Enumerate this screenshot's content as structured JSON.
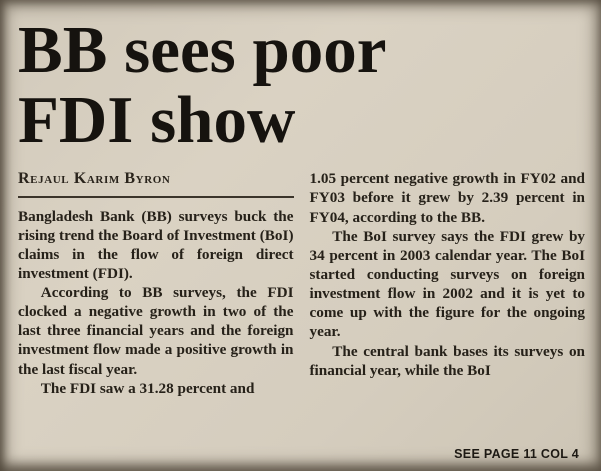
{
  "article": {
    "headline": {
      "line1": "BB sees poor",
      "line2": "FDI show"
    },
    "byline": "Rejaul Karim Byron",
    "columns": [
      {
        "paragraphs": [
          "Bangladesh Bank (BB) surveys buck the rising trend the Board of Investment (BoI) claims in the flow of foreign direct investment (FDI).",
          "According to BB surveys, the FDI clocked a negative growth in two of the last three financial years and the foreign investment flow made a positive growth in the last fiscal year.",
          "The FDI saw a 31.28 percent and"
        ]
      },
      {
        "paragraphs": [
          "1.05 percent negative growth in FY02 and FY03 before it grew by 2.39 percent in FY04, according to the BB.",
          "The BoI survey says the FDI grew by 34 percent in 2003 calendar year. The BoI started conducting surveys on foreign investment flow in 2002 and it is yet to come up with the figure for the ongoing year.",
          "The central bank bases its surveys on financial year, while the BoI"
        ]
      }
    ],
    "continuation": "SEE PAGE 11 COL 4"
  },
  "colors": {
    "paper": "#d7cfc0",
    "ink": "#262119",
    "headline_ink": "#16130f"
  }
}
